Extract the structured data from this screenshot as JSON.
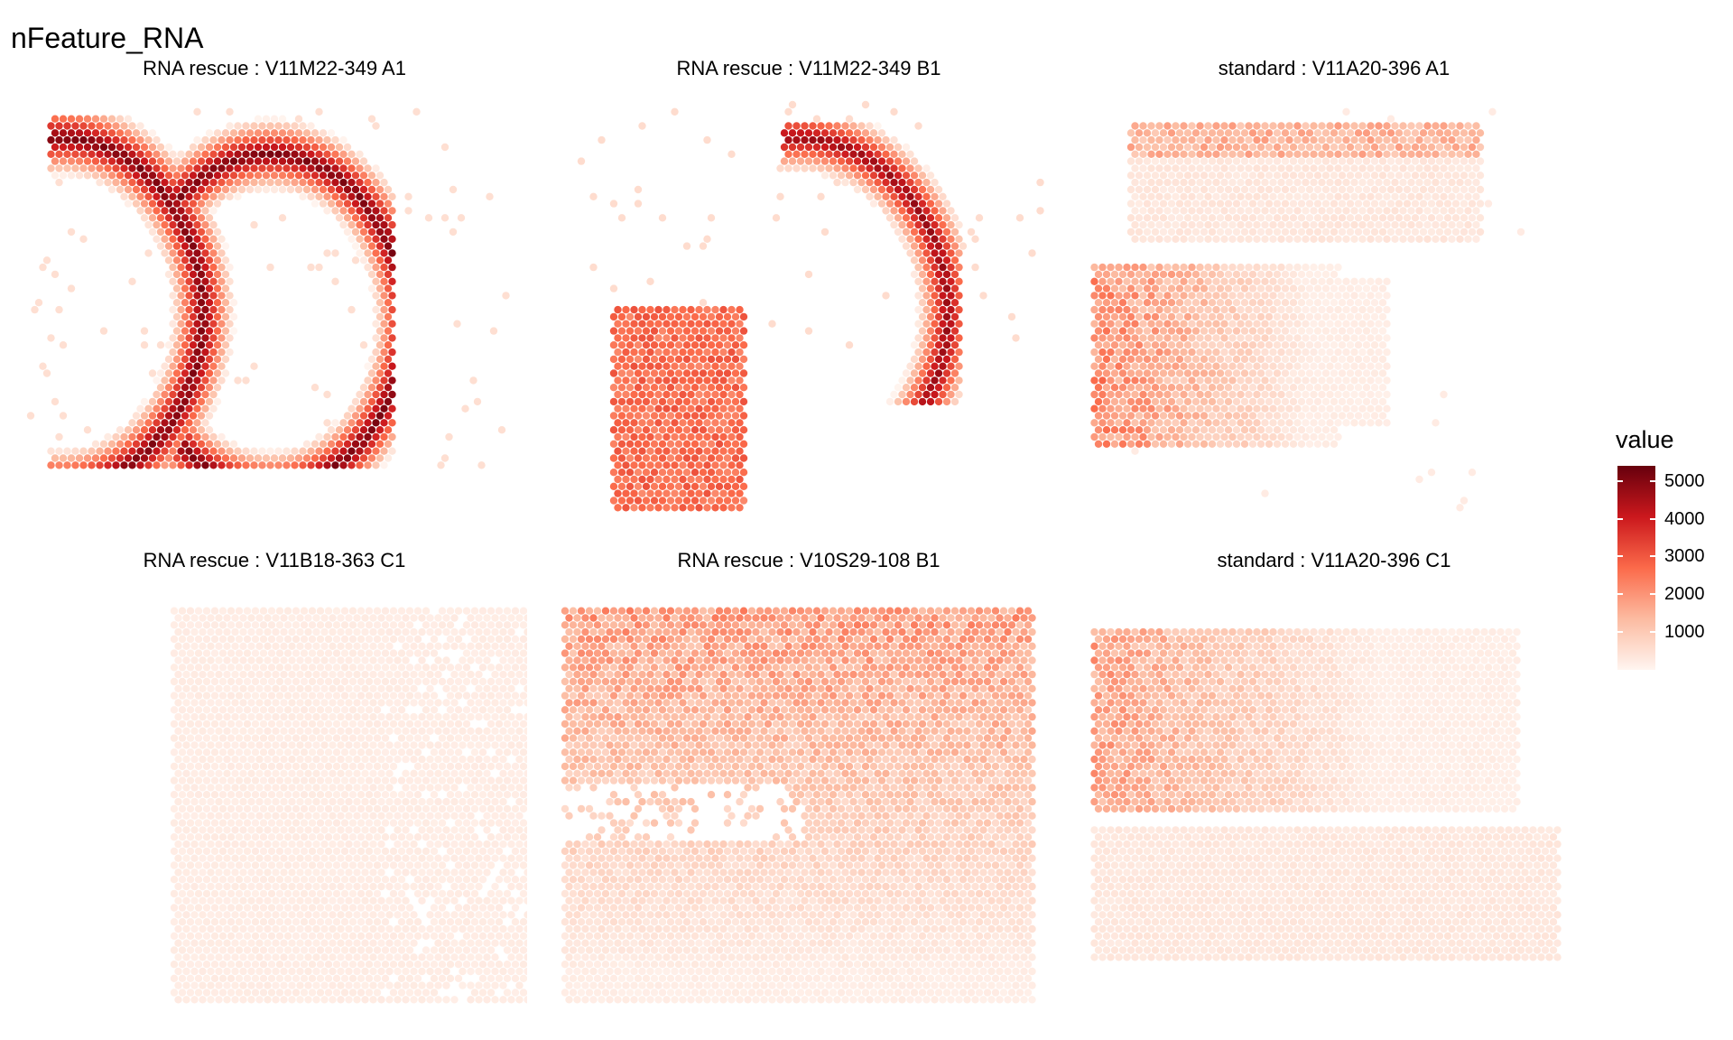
{
  "title": "nFeature_RNA",
  "chart_data": {
    "type": "heatmap",
    "title": "nFeature_RNA",
    "value_range": [
      0,
      5400
    ],
    "color_scale": [
      "#fff5f0",
      "#fcbba1",
      "#fb6a4a",
      "#cb181d",
      "#67000d"
    ],
    "legend": {
      "title": "value",
      "placement": "right",
      "ticks": [
        1000,
        2000,
        3000,
        4000,
        5000
      ],
      "tick_labels": [
        "1000",
        "2000",
        "3000",
        "4000",
        "5000"
      ]
    },
    "panels": [
      {
        "label": "RNA rescue : V11M22-349  A1",
        "shape": "two-arcs",
        "typical_value": 1800,
        "max_value": 5200
      },
      {
        "label": "RNA rescue : V11M22-349  B1",
        "shape": "arc-plus-block",
        "typical_value": 1800,
        "max_value": 4800
      },
      {
        "label": "standard : V11A20-396  A1",
        "shape": "two-bands",
        "typical_value": 500,
        "max_value": 4500
      },
      {
        "label": "RNA rescue : V11B18-363  C1",
        "shape": "full-square",
        "typical_value": 700,
        "max_value": 1000
      },
      {
        "label": "RNA rescue : V10S29-108  B1",
        "shape": "full-square-gradient",
        "typical_value": 1200,
        "max_value": 3600
      },
      {
        "label": "standard : V11A20-396  C1",
        "shape": "two-bands",
        "typical_value": 600,
        "max_value": 3400
      }
    ]
  }
}
